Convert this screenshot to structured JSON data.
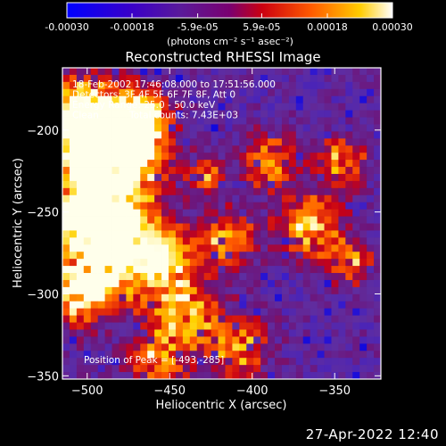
{
  "chart_data": {
    "type": "heatmap",
    "title": "Reconstructed RHESSI Image",
    "xlabel": "Heliocentric X (arcsec)",
    "ylabel": "Heliocentric Y (arcsec)",
    "xlim": [
      -515,
      -322
    ],
    "ylim": [
      -352,
      -162
    ],
    "xticks": [
      -500,
      -450,
      -400,
      -350
    ],
    "yticks": [
      -200,
      -250,
      -300,
      -350
    ],
    "colorbar": {
      "range": [
        -0.0003,
        0.0003
      ],
      "tick_values": [
        -0.0003,
        -0.00018,
        -5.9e-05,
        5.9e-05,
        0.00018,
        0.0003
      ],
      "tick_labels": [
        "-0.00030",
        "-0.00018",
        "-5.9e-05",
        "5.9e-05",
        "0.00018",
        "0.00030"
      ],
      "unit_label": "(photons cm⁻² s⁻¹ asec⁻²)",
      "colormap": [
        "#0000ff",
        "#4b0082",
        "#5a3fa8",
        "#800080",
        "#cc0000",
        "#ff6600",
        "#ffcc00",
        "#ffffff"
      ]
    },
    "annotations": {
      "time": "18-Feb-2002 17:46:08.000 to 17:51:56.000",
      "detectors": "Detectors: 3F 4F 5F 6F 7F 8F, Att 0",
      "energy": "Energy Range: 25.0 - 50.0 keV",
      "clean": "Clean",
      "total_counts": "Total counts: 7.43E+03",
      "peak": "Position of Peak = [-493,-285]"
    },
    "peak": {
      "x": -493,
      "y": -285
    }
  },
  "footer": {
    "timestamp": "27-Apr-2022 12:40"
  }
}
